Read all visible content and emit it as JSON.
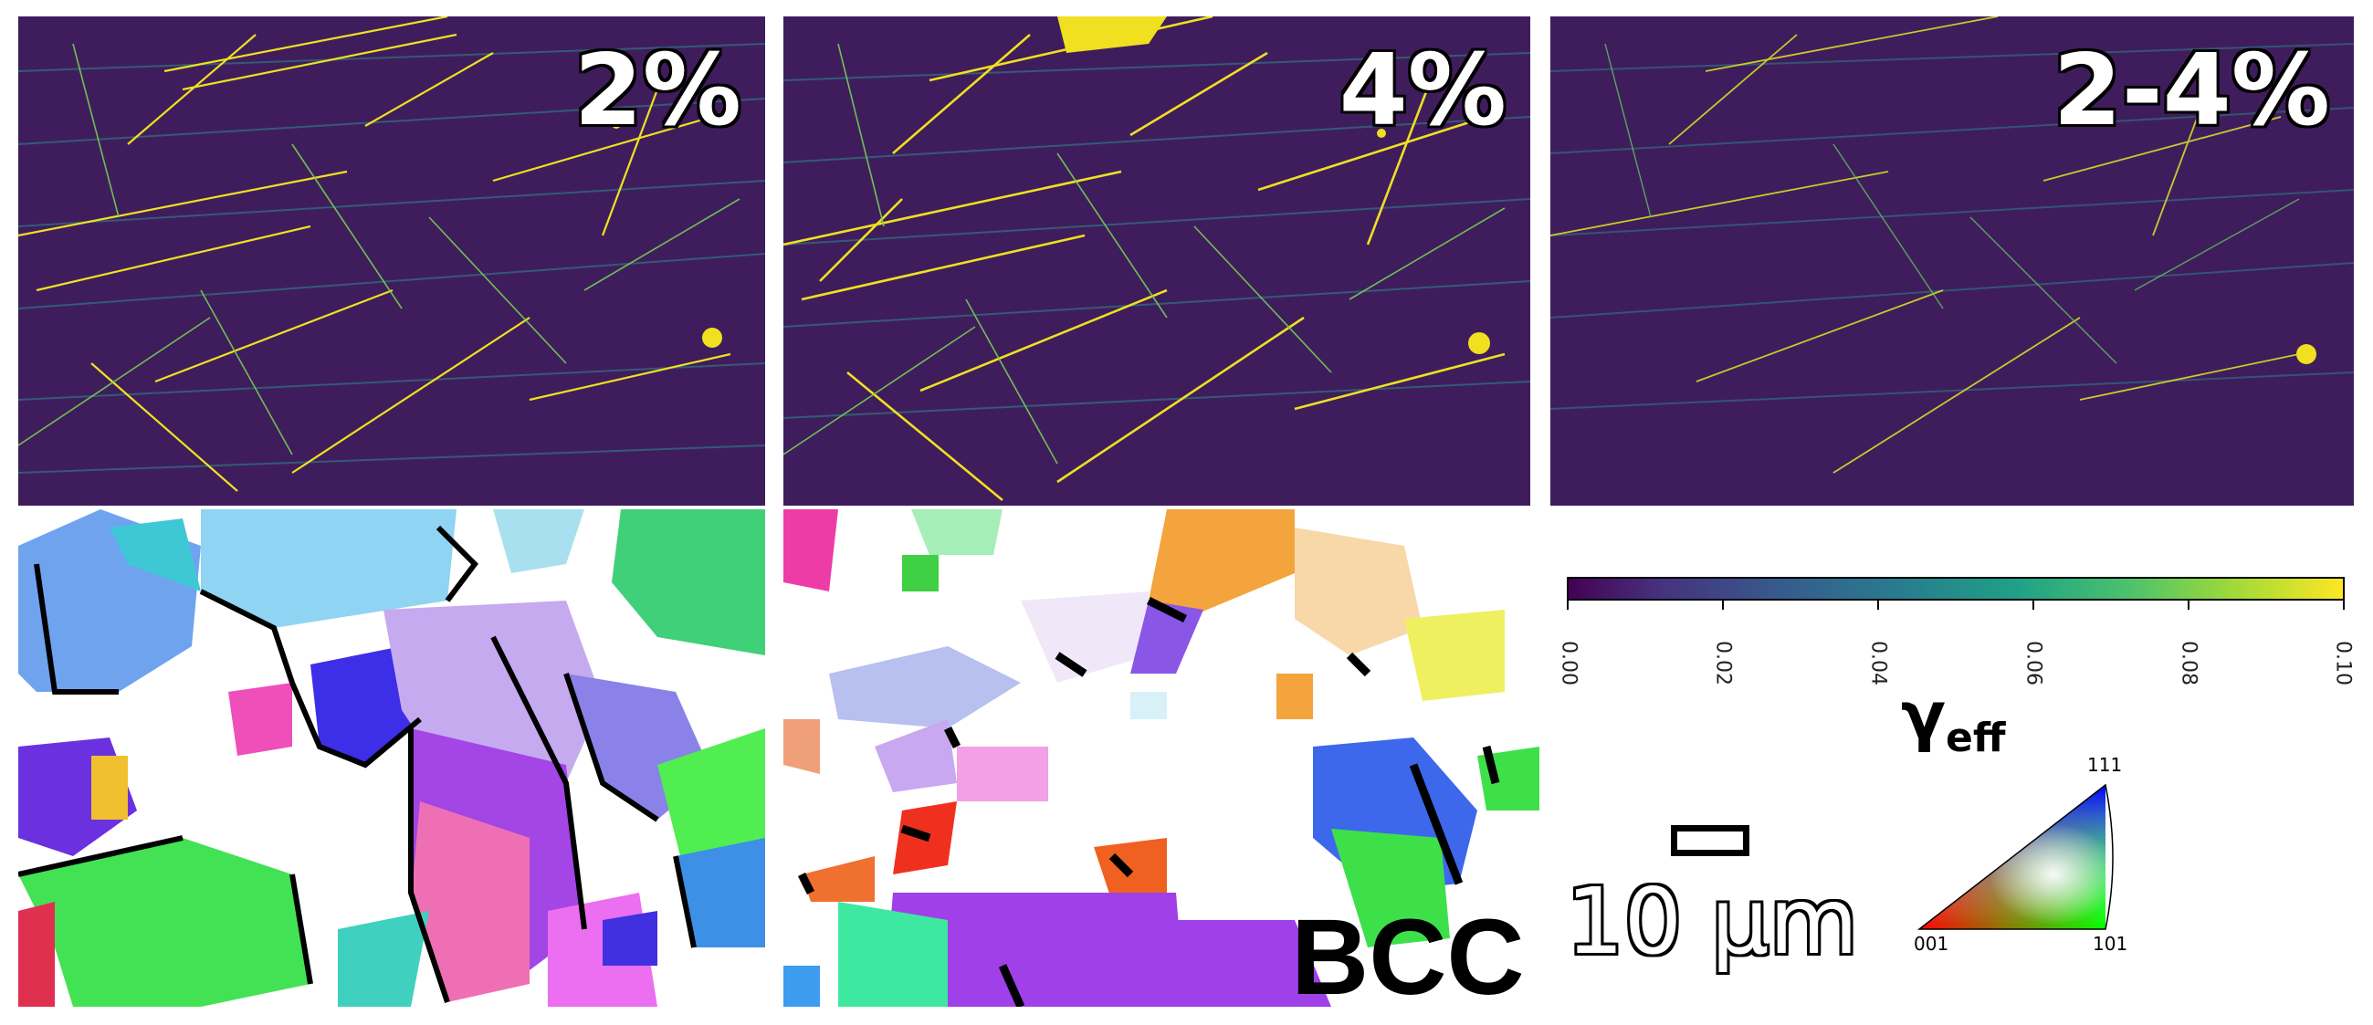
{
  "strain_maps": [
    {
      "label": "2%"
    },
    {
      "label": "4%"
    },
    {
      "label": "2-4%"
    }
  ],
  "bcc_label": "BCC",
  "colorbar": {
    "colormap": "viridis",
    "ticks": [
      "0.00",
      "0.02",
      "0.04",
      "0.06",
      "0.08",
      "0.10"
    ],
    "min": 0.0,
    "max": 0.1,
    "label_main": "γ",
    "label_sub": "eff"
  },
  "scale_bar": {
    "text": "10 μm"
  },
  "ipf_key": {
    "top": "111",
    "left": "001",
    "right": "101"
  },
  "colors": {
    "map_background": "#3b1b59",
    "line_yellow": "#f4e51e",
    "line_green": "#5fc75f",
    "line_teal": "#2a8f8a"
  }
}
